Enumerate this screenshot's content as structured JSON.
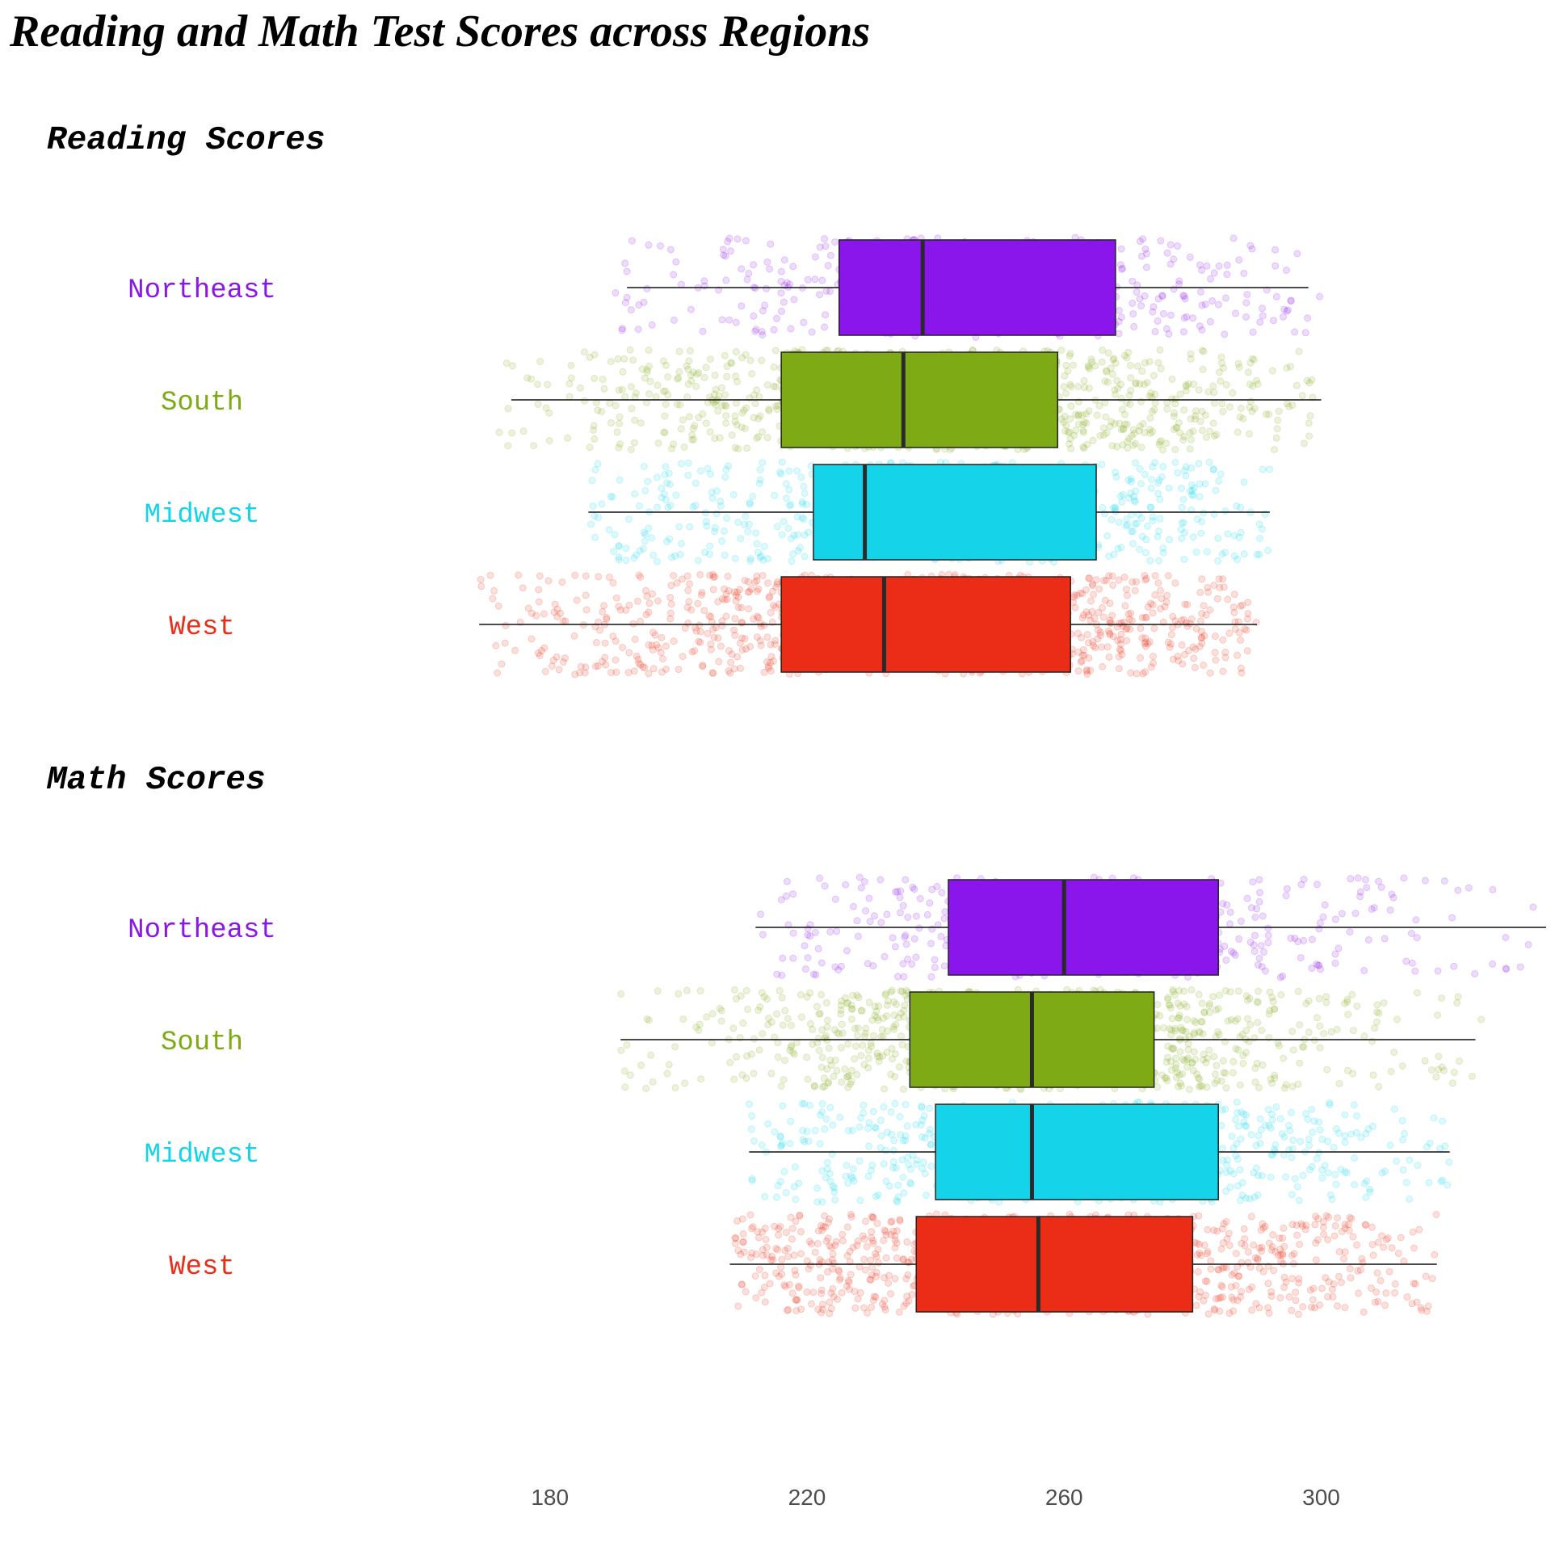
{
  "chart_data": {
    "type": "boxplot",
    "title": "Reading and Math Test Scores across Regions",
    "xlabel": "",
    "ylabel": "",
    "xlim": [
      150,
      335
    ],
    "x_ticks": [
      "180",
      "220",
      "260",
      "300"
    ],
    "tick_values": [
      180,
      220,
      260,
      300
    ],
    "grid": false,
    "legend": "none",
    "point_opacity": 0.15,
    "categories": [
      "Northeast",
      "South",
      "Midwest",
      "West"
    ],
    "colors": {
      "Northeast": "#8a16eb",
      "South": "#7eaa16",
      "Midwest": "#15d4ea",
      "West": "#eb2c16"
    },
    "panels": [
      {
        "title": "Reading Scores",
        "boxes": [
          {
            "category": "Northeast",
            "min": 192,
            "q1": 225,
            "median": 238,
            "q3": 268,
            "max": 298,
            "points_range": [
              190,
              300
            ],
            "n_points": 420
          },
          {
            "category": "South",
            "min": 174,
            "q1": 216,
            "median": 235,
            "q3": 259,
            "max": 300,
            "points_range": [
              172,
              300
            ],
            "n_points": 900
          },
          {
            "category": "Midwest",
            "min": 186,
            "q1": 221,
            "median": 229,
            "q3": 265,
            "max": 292,
            "points_range": [
              186,
              292
            ],
            "n_points": 620
          },
          {
            "category": "West",
            "min": 169,
            "q1": 216,
            "median": 232,
            "q3": 261,
            "max": 290,
            "points_range": [
              169,
              290
            ],
            "n_points": 1000
          }
        ]
      },
      {
        "title": "Math Scores",
        "boxes": [
          {
            "category": "Northeast",
            "min": 212,
            "q1": 242,
            "median": 260,
            "q3": 284,
            "max": 335,
            "points_range": [
              212,
              335
            ],
            "n_points": 420
          },
          {
            "category": "South",
            "min": 191,
            "q1": 236,
            "median": 255,
            "q3": 274,
            "max": 324,
            "points_range": [
              191,
              325
            ],
            "n_points": 900
          },
          {
            "category": "Midwest",
            "min": 211,
            "q1": 240,
            "median": 255,
            "q3": 284,
            "max": 320,
            "points_range": [
              211,
              320
            ],
            "n_points": 620
          },
          {
            "category": "West",
            "min": 208,
            "q1": 237,
            "median": 256,
            "q3": 280,
            "max": 318,
            "points_range": [
              208,
              318
            ],
            "n_points": 1000
          }
        ]
      }
    ]
  }
}
